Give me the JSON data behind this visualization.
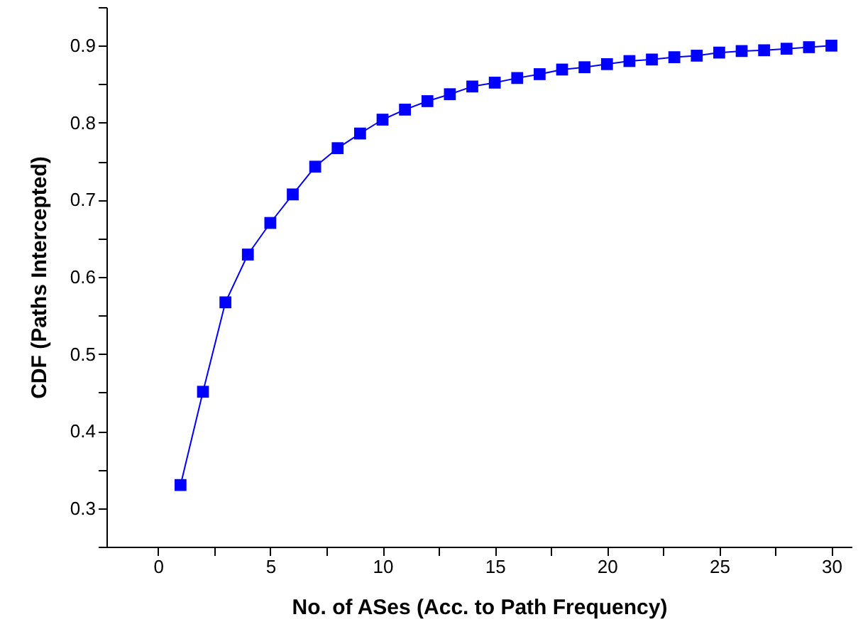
{
  "chart_data": {
    "type": "line",
    "xlabel": "No. of ASes (Acc. to Path Frequency)",
    "ylabel": "CDF (Paths Intercepted)",
    "x": [
      1,
      2,
      3,
      4,
      5,
      6,
      7,
      8,
      9,
      10,
      11,
      12,
      13,
      14,
      15,
      16,
      17,
      18,
      19,
      20,
      21,
      22,
      23,
      24,
      25,
      26,
      27,
      28,
      29,
      30
    ],
    "series": [
      {
        "color": "#0000ff",
        "values": [
          0.33,
          0.451,
          0.567,
          0.629,
          0.67,
          0.707,
          0.743,
          0.767,
          0.786,
          0.804,
          0.817,
          0.828,
          0.837,
          0.847,
          0.852,
          0.858,
          0.863,
          0.869,
          0.872,
          0.876,
          0.88,
          0.882,
          0.885,
          0.887,
          0.891,
          0.893,
          0.894,
          0.896,
          0.898,
          0.9
        ]
      }
    ],
    "xlim": [
      -2.3,
      30.9
    ],
    "xticks": [
      0,
      {
        "value": 2.5,
        "label": null
      },
      5,
      {
        "value": 7.5,
        "label": null
      },
      10,
      {
        "value": 12.5,
        "label": null
      },
      15,
      {
        "value": 17.5,
        "label": null
      },
      20,
      {
        "value": 22.5,
        "label": null
      },
      25,
      {
        "value": 27.5,
        "label": null
      },
      30
    ],
    "ylim": [
      0.25,
      0.95
    ],
    "yticks": [
      {
        "value": 0.25,
        "label": null
      },
      0.3,
      {
        "value": 0.35,
        "label": null
      },
      0.4,
      {
        "value": 0.45,
        "label": null
      },
      0.5,
      {
        "value": 0.55,
        "label": null
      },
      0.6,
      {
        "value": 0.65,
        "label": null
      },
      0.7,
      {
        "value": 0.75,
        "label": null
      },
      0.8,
      {
        "value": 0.85,
        "label": null
      },
      0.9,
      {
        "value": 0.95,
        "label": null
      }
    ],
    "marker": "square",
    "line_style": "solid",
    "grid": false
  }
}
